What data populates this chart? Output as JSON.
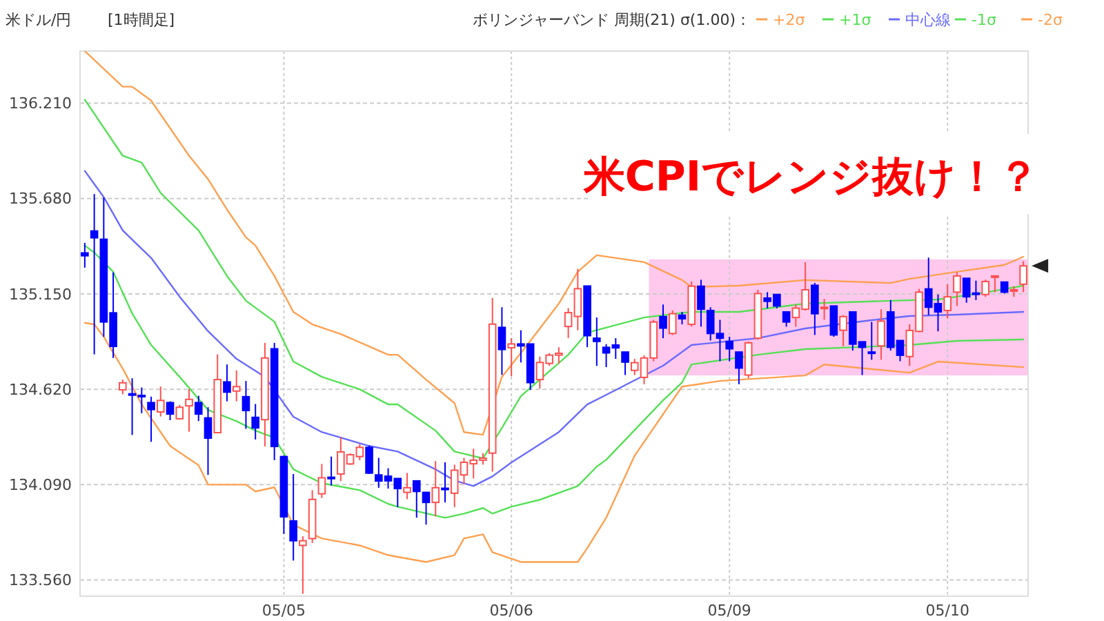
{
  "chart_data": {
    "type": "candlestick",
    "title": "米ドル/円",
    "subtitle": "[1時間足]",
    "legend_title": "ボリンジャーバンド 周期(21) σ(1.00)：",
    "legend": "top right",
    "grid": true,
    "annotations": [
      "米CPIでレンジ抜け！？"
    ],
    "categories": [
      null,
      null,
      null,
      null,
      null,
      null,
      null,
      null,
      null,
      null,
      null,
      null,
      null,
      null,
      null,
      null,
      null,
      null,
      null,
      null,
      null,
      "05/05",
      null,
      null,
      null,
      null,
      null,
      null,
      null,
      null,
      null,
      null,
      null,
      null,
      null,
      null,
      null,
      null,
      null,
      null,
      null,
      null,
      null,
      null,
      null,
      "05/06",
      null,
      null,
      null,
      null,
      null,
      null,
      null,
      null,
      null,
      null,
      null,
      null,
      null,
      null,
      null,
      null,
      null,
      null,
      null,
      null,
      null,
      null,
      "05/09",
      null,
      null,
      null,
      null,
      null,
      null,
      null,
      null,
      null,
      null,
      null,
      null,
      null,
      null,
      null,
      null,
      null,
      null,
      null,
      null,
      null,
      null,
      "05/10",
      null,
      null,
      null,
      null,
      null,
      null,
      null,
      null
    ],
    "ylim": [
      133.47,
      136.5
    ],
    "yticks": [
      {
        "value": 133.56,
        "label": "133.560"
      },
      {
        "value": 134.09,
        "label": "134.090"
      },
      {
        "value": 134.62,
        "label": "134.620"
      },
      {
        "value": 135.15,
        "label": "135.150"
      },
      {
        "value": 135.68,
        "label": "135.680"
      },
      {
        "value": 136.21,
        "label": "136.210"
      }
    ],
    "bands": [
      {
        "axis": "y",
        "from": 134.697,
        "to": 135.342,
        "color": "#ffc8ec"
      }
    ],
    "ohlc": [
      [
        135.378,
        135.434,
        135.296,
        135.362
      ],
      [
        135.5,
        135.705,
        134.814,
        135.462
      ],
      [
        135.454,
        135.685,
        134.912,
        134.994
      ],
      [
        135.045,
        135.27,
        134.794,
        134.858
      ],
      [
        134.617,
        134.674,
        134.592,
        134.656
      ],
      [
        134.595,
        134.681,
        134.366,
        134.59
      ],
      [
        134.586,
        134.63,
        134.487,
        134.582
      ],
      [
        134.546,
        134.579,
        134.328,
        134.507
      ],
      [
        134.494,
        134.635,
        134.469,
        134.558
      ],
      [
        134.546,
        134.553,
        134.448,
        134.482
      ],
      [
        134.456,
        134.533,
        134.451,
        134.52
      ],
      [
        134.528,
        134.622,
        134.384,
        134.564
      ],
      [
        134.546,
        134.584,
        134.443,
        134.482
      ],
      [
        134.461,
        134.52,
        134.144,
        134.348
      ],
      [
        134.379,
        134.814,
        134.379,
        134.674
      ],
      [
        134.661,
        134.758,
        134.553,
        134.604
      ],
      [
        134.61,
        134.725,
        134.553,
        134.635
      ],
      [
        134.579,
        134.666,
        134.4,
        134.502
      ],
      [
        134.464,
        134.538,
        134.341,
        134.405
      ],
      [
        134.451,
        134.878,
        134.302,
        134.794
      ],
      [
        134.845,
        134.878,
        134.226,
        134.302
      ],
      [
        134.246,
        134.251,
        133.816,
        133.911
      ],
      [
        133.888,
        134.149,
        133.668,
        133.778
      ],
      [
        133.752,
        133.803,
        133.483,
        133.778
      ],
      [
        133.79,
        134.059,
        133.765,
        134.008
      ],
      [
        134.039,
        134.205,
        134.016,
        134.128
      ],
      [
        134.131,
        134.246,
        134.085,
        134.123
      ],
      [
        134.149,
        134.354,
        134.11,
        134.272
      ],
      [
        134.205,
        134.264,
        134.2,
        134.256
      ],
      [
        134.246,
        134.315,
        134.226,
        134.297
      ],
      [
        134.297,
        134.307,
        134.149,
        134.154
      ],
      [
        134.144,
        134.239,
        134.072,
        134.11
      ],
      [
        134.137,
        134.181,
        134.068,
        134.111
      ],
      [
        134.124,
        134.124,
        133.965,
        134.068
      ],
      [
        134.047,
        134.155,
        134.009,
        134.073
      ],
      [
        134.111,
        134.111,
        133.906,
        134.052
      ],
      [
        134.047,
        134.047,
        133.868,
        133.991
      ],
      [
        133.991,
        134.221,
        133.914,
        134.073
      ],
      [
        134.07,
        134.214,
        133.991,
        134.066
      ],
      [
        134.042,
        134.201,
        133.965,
        134.17
      ],
      [
        134.144,
        134.239,
        134.093,
        134.214
      ],
      [
        134.206,
        134.29,
        134.124,
        134.226
      ],
      [
        134.226,
        134.265,
        134.201,
        134.237
      ],
      [
        134.265,
        135.128,
        134.162,
        134.982
      ],
      [
        134.964,
        135.076,
        134.7,
        134.841
      ],
      [
        134.851,
        134.905,
        134.692,
        134.872
      ],
      [
        134.872,
        134.948,
        134.769,
        134.861
      ],
      [
        134.872,
        134.872,
        134.616,
        134.657
      ],
      [
        134.674,
        134.802,
        134.623,
        134.769
      ],
      [
        134.764,
        134.82,
        134.751,
        134.81
      ],
      [
        134.81,
        134.854,
        134.764,
        134.82
      ],
      [
        134.969,
        135.071,
        134.905,
        135.046
      ],
      [
        135.025,
        135.289,
        134.948,
        135.179
      ],
      [
        135.194,
        135.194,
        134.854,
        134.918
      ],
      [
        134.904,
        135.019,
        134.75,
        134.886
      ],
      [
        134.853,
        134.871,
        134.743,
        134.822
      ],
      [
        134.866,
        134.904,
        134.789,
        134.85
      ],
      [
        134.827,
        134.827,
        134.699,
        134.771
      ],
      [
        134.725,
        134.789,
        134.699,
        134.768
      ],
      [
        134.686,
        134.809,
        134.648,
        134.794
      ],
      [
        134.794,
        135.006,
        134.776,
        134.994
      ],
      [
        135.024,
        135.091,
        134.904,
        134.96
      ],
      [
        134.93,
        135.058,
        134.922,
        135.04
      ],
      [
        135.032,
        135.05,
        134.981,
        135.012
      ],
      [
        134.981,
        135.219,
        134.968,
        135.193
      ],
      [
        135.193,
        135.229,
        134.968,
        135.065
      ],
      [
        135.058,
        135.076,
        134.891,
        134.93
      ],
      [
        134.93,
        135.006,
        134.776,
        134.904
      ],
      [
        134.886,
        134.912,
        134.776,
        134.845
      ],
      [
        134.827,
        134.827,
        134.648,
        134.738
      ],
      [
        134.699,
        134.886,
        134.681,
        134.878
      ],
      [
        134.904,
        135.173,
        134.896,
        135.152
      ],
      [
        135.127,
        135.16,
        135.07,
        135.109
      ],
      [
        135.147,
        135.147,
        135.07,
        135.083
      ],
      [
        135.05,
        135.05,
        134.968,
        134.994
      ],
      [
        135.019,
        135.091,
        134.968,
        135.071
      ],
      [
        135.065,
        135.326,
        135.058,
        135.173
      ],
      [
        135.198,
        135.211,
        134.922,
        135.04
      ],
      [
        135.071,
        135.122,
        135.006,
        135.076
      ],
      [
        135.083,
        135.083,
        134.912,
        134.922
      ],
      [
        134.948,
        135.032,
        134.86,
        135.024
      ],
      [
        135.05,
        135.05,
        134.835,
        134.871
      ],
      [
        134.884,
        134.884,
        134.699,
        134.853
      ],
      [
        134.827,
        134.994,
        134.784,
        134.822
      ],
      [
        134.861,
        135.065,
        134.784,
        134.999
      ],
      [
        135.05,
        135.116,
        134.835,
        134.853
      ],
      [
        134.891,
        134.891,
        134.776,
        134.809
      ],
      [
        134.802,
        134.981,
        134.75,
        134.947
      ],
      [
        134.942,
        135.178,
        134.937,
        135.16
      ],
      [
        135.178,
        135.352,
        135.032,
        135.076
      ],
      [
        135.096,
        135.147,
        134.942,
        135.05
      ],
      [
        135.058,
        135.204,
        135.014,
        135.134
      ],
      [
        135.16,
        135.27,
        135.083,
        135.25
      ],
      [
        135.237,
        135.237,
        135.101,
        135.134
      ],
      [
        135.155,
        135.224,
        135.116,
        135.15
      ],
      [
        135.147,
        135.229,
        135.134,
        135.219
      ],
      [
        135.245,
        135.25,
        135.16,
        135.25
      ],
      [
        135.216,
        135.216,
        135.152,
        135.16
      ],
      [
        135.167,
        135.193,
        135.134,
        135.173
      ],
      [
        135.204,
        135.332,
        135.16,
        135.306
      ]
    ],
    "colors": [
      "#0000ff",
      "#0000ff",
      "#0000ff",
      "#0000ff",
      "#ff5050",
      "#0000ff",
      "#0000ff",
      "#0000ff",
      "#ff5050",
      "#0000ff",
      "#ff5050",
      "#ff5050",
      "#0000ff",
      "#0000ff",
      "#ff5050",
      "#0000ff",
      "#ff5050",
      "#0000ff",
      "#0000ff",
      "#ff5050",
      "#0000ff",
      "#0000ff",
      "#0000ff",
      "#ff5050",
      "#ff5050",
      "#ff5050",
      "#0000ff",
      "#ff5050",
      "#ff5050",
      "#ff5050",
      "#0000ff",
      "#0000ff",
      "#0000ff",
      "#0000ff",
      "#ff5050",
      "#0000ff",
      "#0000ff",
      "#ff5050",
      "#0000ff",
      "#ff5050",
      "#ff5050",
      "#ff5050",
      "#ff5050",
      "#ff5050",
      "#0000ff",
      "#ff5050",
      "#0000ff",
      "#0000ff",
      "#ff5050",
      "#ff5050",
      "#ff5050",
      "#ff5050",
      "#ff5050",
      "#0000ff",
      "#0000ff",
      "#0000ff",
      "#0000ff",
      "#0000ff",
      "#ff5050",
      "#ff5050",
      "#ff5050",
      "#0000ff",
      "#ff5050",
      "#0000ff",
      "#ff5050",
      "#0000ff",
      "#0000ff",
      "#0000ff",
      "#0000ff",
      "#0000ff",
      "#ff5050",
      "#ff5050",
      "#0000ff",
      "#0000ff",
      "#0000ff",
      "#ff5050",
      "#ff5050",
      "#0000ff",
      "#ff5050",
      "#0000ff",
      "#ff5050",
      "#0000ff",
      "#0000ff",
      "#0000ff",
      "#ff5050",
      "#0000ff",
      "#0000ff",
      "#ff5050",
      "#ff5050",
      "#0000ff",
      "#0000ff",
      "#ff5050",
      "#ff5050",
      "#0000ff",
      "#0000ff",
      "#ff5050",
      "#ff5050",
      "#0000ff",
      "#ff5050",
      "#ff5050"
    ],
    "series": [
      {
        "name": "+2σ",
        "type": "line",
        "color": "#ffa050",
        "values": [
          136.5,
          null,
          null,
          null,
          136.302,
          136.302,
          null,
          136.225,
          null,
          null,
          null,
          135.918,
          null,
          135.788,
          null,
          135.619,
          null,
          135.465,
          135.419,
          null,
          135.25,
          null,
          135.05,
          null,
          134.981,
          null,
          null,
          134.927,
          null,
          null,
          null,
          null,
          134.812,
          134.812,
          null,
          null,
          134.674,
          null,
          null,
          134.543,
          134.382,
          null,
          134.367,
          null,
          134.689,
          null,
          null,
          134.889,
          null,
          null,
          135.096,
          null,
          135.273,
          null,
          135.365,
          null,
          null,
          null,
          null,
          135.327,
          null,
          null,
          null,
          135.227,
          135.188,
          null,
          null,
          null,
          null,
          135.196,
          null,
          null,
          null,
          null,
          null,
          null,
          135.227,
          null,
          null,
          null,
          null,
          null,
          null,
          null,
          null,
          135.211,
          null,
          135.234,
          null,
          null,
          null,
          null,
          135.273,
          null,
          null,
          null,
          null,
          135.311,
          null,
          135.357
        ]
      },
      {
        "name": "+1σ",
        "type": "line",
        "color": "#55e055",
        "values": [
          136.23,
          null,
          null,
          null,
          135.918,
          null,
          135.88,
          null,
          135.711,
          null,
          null,
          null,
          135.503,
          null,
          null,
          135.25,
          null,
          135.112,
          null,
          null,
          134.996,
          null,
          134.774,
          null,
          null,
          134.689,
          null,
          null,
          null,
          134.62,
          null,
          null,
          134.536,
          134.536,
          null,
          null,
          null,
          134.39,
          null,
          134.274,
          null,
          null,
          134.236,
          null,
          134.405,
          null,
          134.582,
          null,
          null,
          null,
          null,
          134.812,
          null,
          134.935,
          null,
          null,
          null,
          null,
          null,
          135.019,
          null,
          null,
          null,
          null,
          135.05,
          null,
          null,
          null,
          null,
          135.05,
          null,
          null,
          null,
          null,
          null,
          null,
          135.096,
          null,
          null,
          null,
          null,
          null,
          null,
          null,
          null,
          135.112,
          null,
          null,
          null,
          null,
          135.119,
          null,
          null,
          null,
          null,
          135.158,
          null,
          null,
          null,
          135.196
        ]
      },
      {
        "name": "中心線",
        "type": "line",
        "color": "#6a6aff",
        "values": [
          135.834,
          null,
          135.688,
          null,
          135.503,
          null,
          null,
          135.35,
          null,
          null,
          135.135,
          null,
          null,
          134.943,
          null,
          null,
          134.789,
          null,
          null,
          134.689,
          null,
          null,
          134.467,
          null,
          null,
          134.382,
          null,
          null,
          null,
          null,
          134.305,
          null,
          null,
          134.274,
          null,
          null,
          null,
          134.175,
          null,
          134.113,
          null,
          134.082,
          null,
          134.136,
          null,
          134.213,
          null,
          null,
          null,
          null,
          134.382,
          null,
          null,
          134.536,
          null,
          134.589,
          null,
          null,
          null,
          null,
          null,
          134.751,
          null,
          null,
          134.866,
          null,
          null,
          null,
          null,
          null,
          null,
          134.904,
          null,
          null,
          null,
          null,
          134.958,
          null,
          null,
          null,
          null,
          null,
          null,
          135.004,
          null,
          null,
          null,
          135.027,
          null,
          null,
          null,
          null,
          135.035,
          null,
          null,
          null,
          null,
          null,
          null,
          135.05
        ]
      },
      {
        "name": "-1σ",
        "type": "line",
        "color": "#55e055",
        "values": [
          135.419,
          135.38,
          null,
          135.273,
          null,
          135.042,
          null,
          134.866,
          null,
          null,
          134.689,
          null,
          null,
          134.505,
          null,
          null,
          134.443,
          null,
          134.39,
          null,
          134.351,
          null,
          134.175,
          null,
          null,
          134.098,
          null,
          null,
          null,
          134.059,
          null,
          null,
          133.983,
          133.967,
          null,
          null,
          null,
          null,
          133.906,
          null,
          133.929,
          null,
          133.96,
          133.929,
          null,
          133.967,
          null,
          null,
          134.006,
          null,
          null,
          null,
          134.082,
          null,
          134.19,
          134.228,
          null,
          null,
          null,
          null,
          null,
          134.559,
          null,
          134.658,
          134.758,
          null,
          null,
          null,
          null,
          null,
          null,
          134.812,
          null,
          null,
          null,
          null,
          134.843,
          null,
          null,
          null,
          null,
          null,
          null,
          null,
          null,
          null,
          null,
          134.866,
          null,
          null,
          null,
          null,
          134.889,
          null,
          null,
          null,
          null,
          null,
          null,
          134.897
        ]
      },
      {
        "name": "-2σ",
        "type": "line",
        "color": "#ffa050",
        "values": [
          134.989,
          134.981,
          134.912,
          null,
          134.735,
          null,
          134.536,
          null,
          null,
          134.305,
          null,
          null,
          134.198,
          134.09,
          null,
          null,
          null,
          134.09,
          134.052,
          null,
          134.075,
          null,
          133.867,
          null,
          null,
          133.791,
          null,
          null,
          null,
          133.752,
          null,
          null,
          133.698,
          null,
          null,
          null,
          133.66,
          null,
          null,
          133.698,
          133.791,
          null,
          133.814,
          133.714,
          null,
          null,
          133.66,
          null,
          null,
          null,
          null,
          null,
          133.66,
          133.737,
          null,
          133.906,
          null,
          null,
          134.251,
          null,
          null,
          null,
          null,
          134.635,
          null,
          null,
          null,
          134.666,
          null,
          null,
          null,
          null,
          null,
          null,
          null,
          null,
          134.697,
          null,
          134.758,
          null,
          null,
          null,
          null,
          null,
          null,
          null,
          null,
          134.712,
          null,
          null,
          134.774,
          null,
          null,
          null,
          null,
          null,
          null,
          null,
          null,
          134.743
        ]
      }
    ]
  }
}
